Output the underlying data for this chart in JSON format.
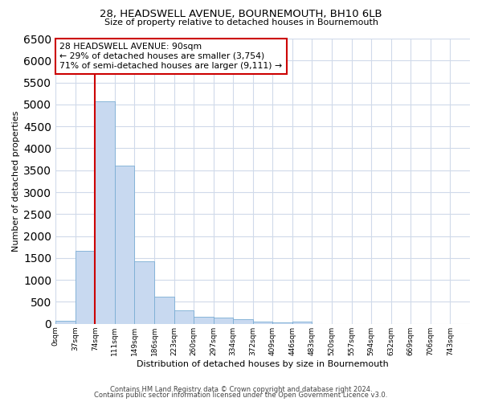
{
  "title1": "28, HEADSWELL AVENUE, BOURNEMOUTH, BH10 6LB",
  "title2": "Size of property relative to detached houses in Bournemouth",
  "xlabel": "Distribution of detached houses by size in Bournemouth",
  "ylabel": "Number of detached properties",
  "bin_labels": [
    "0sqm",
    "37sqm",
    "74sqm",
    "111sqm",
    "149sqm",
    "186sqm",
    "223sqm",
    "260sqm",
    "297sqm",
    "334sqm",
    "372sqm",
    "409sqm",
    "446sqm",
    "483sqm",
    "520sqm",
    "557sqm",
    "594sqm",
    "632sqm",
    "669sqm",
    "706sqm",
    "743sqm"
  ],
  "bar_values": [
    75,
    1660,
    5070,
    3600,
    1420,
    620,
    310,
    160,
    140,
    100,
    50,
    30,
    55,
    0,
    0,
    0,
    0,
    0,
    0,
    0,
    0
  ],
  "bar_color": "#c8d9f0",
  "bar_edge_color": "#7aadd4",
  "grid_color": "#d0daea",
  "annotation_box_text": "28 HEADSWELL AVENUE: 90sqm\n← 29% of detached houses are smaller (3,754)\n71% of semi-detached houses are larger (9,111) →",
  "annotation_box_color": "#cc0000",
  "red_line_xval": 74,
  "ylim": [
    0,
    6500
  ],
  "yticks": [
    0,
    500,
    1000,
    1500,
    2000,
    2500,
    3000,
    3500,
    4000,
    4500,
    5000,
    5500,
    6000,
    6500
  ],
  "footer1": "Contains HM Land Registry data © Crown copyright and database right 2024.",
  "footer2": "Contains public sector information licensed under the Open Government Licence v3.0.",
  "bg_color": "#ffffff"
}
